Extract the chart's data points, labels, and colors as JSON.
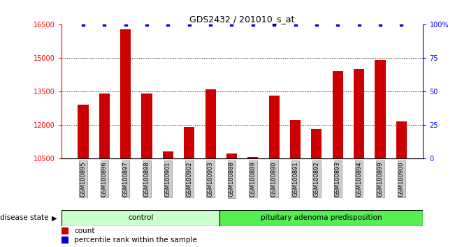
{
  "title": "GDS2432 / 201010_s_at",
  "categories": [
    "GSM100895",
    "GSM100896",
    "GSM100897",
    "GSM100898",
    "GSM100901",
    "GSM100902",
    "GSM100903",
    "GSM100888",
    "GSM100889",
    "GSM100890",
    "GSM100891",
    "GSM100892",
    "GSM100893",
    "GSM100894",
    "GSM100899",
    "GSM100900"
  ],
  "count_values": [
    12900,
    13400,
    16300,
    13400,
    10800,
    11900,
    13600,
    10700,
    10550,
    13300,
    12200,
    11800,
    14400,
    14500,
    14900,
    12150
  ],
  "percentile_values": [
    100,
    100,
    100,
    100,
    100,
    100,
    100,
    100,
    100,
    100,
    100,
    100,
    100,
    100,
    100,
    100
  ],
  "ylim_left": [
    10500,
    16500
  ],
  "ylim_right": [
    0,
    100
  ],
  "yticks_left": [
    10500,
    12000,
    13500,
    15000,
    16500
  ],
  "yticks_right": [
    0,
    25,
    50,
    75,
    100
  ],
  "bar_color": "#cc0000",
  "percentile_color": "#0000cc",
  "control_count": 7,
  "control_label": "control",
  "disease_label": "pituitary adenoma predisposition",
  "control_bg": "#ccffcc",
  "disease_bg": "#55ee55",
  "group_label": "disease state",
  "legend_count_label": "count",
  "legend_percentile_label": "percentile rank within the sample",
  "bar_width": 0.5,
  "dotted_grid_values": [
    12000,
    13500,
    15000
  ]
}
